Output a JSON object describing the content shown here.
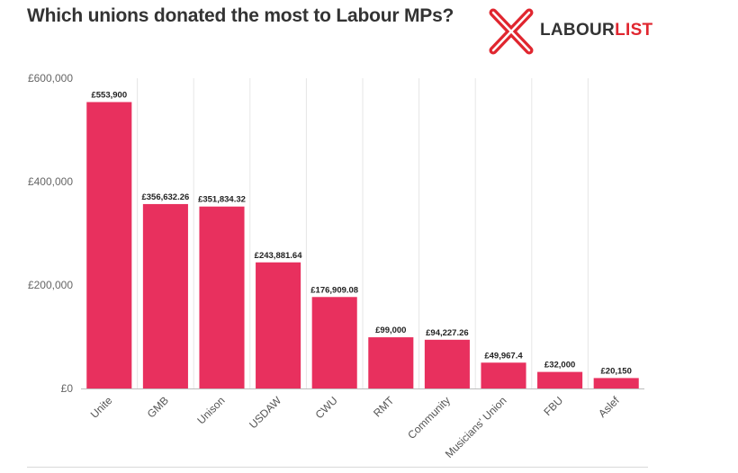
{
  "header": {
    "title": "Which unions donated the most to Labour MPs?"
  },
  "logo": {
    "text_dark": "LABOUR",
    "text_accent": "LIST",
    "icon": "labourlist-x-logo-icon"
  },
  "colors": {
    "bar": "#e8305e",
    "title": "#333333",
    "logo_red": "#e0262f",
    "grid": "#e6e6e6",
    "axis_text": "#666666"
  },
  "chart_data": {
    "type": "bar",
    "title": "Which unions donated the most to Labour MPs?",
    "xlabel": "",
    "ylabel": "",
    "categories": [
      "Unite",
      "GMB",
      "Unison",
      "USDAW",
      "CWU",
      "RMT",
      "Community",
      "Musicians' Union",
      "FBU",
      "Aslef"
    ],
    "values": [
      553900,
      356632.26,
      351834.32,
      243881.64,
      176909.08,
      99000,
      94227.26,
      49967.4,
      32000,
      20150
    ],
    "value_labels": [
      "£553,900",
      "£356,632.26",
      "£351,834.32",
      "£243,881.64",
      "£176,909.08",
      "£99,000",
      "£94,227.26",
      "£49,967.4",
      "£32,000",
      "£20,150"
    ],
    "yticks": [
      0,
      200000,
      400000,
      600000
    ],
    "ytick_labels": [
      "£0",
      "£200,000",
      "£400,000",
      "£600,000"
    ],
    "ylim": [
      0,
      600000
    ],
    "grid": "vertical gridlines between categories",
    "legend": "none"
  }
}
